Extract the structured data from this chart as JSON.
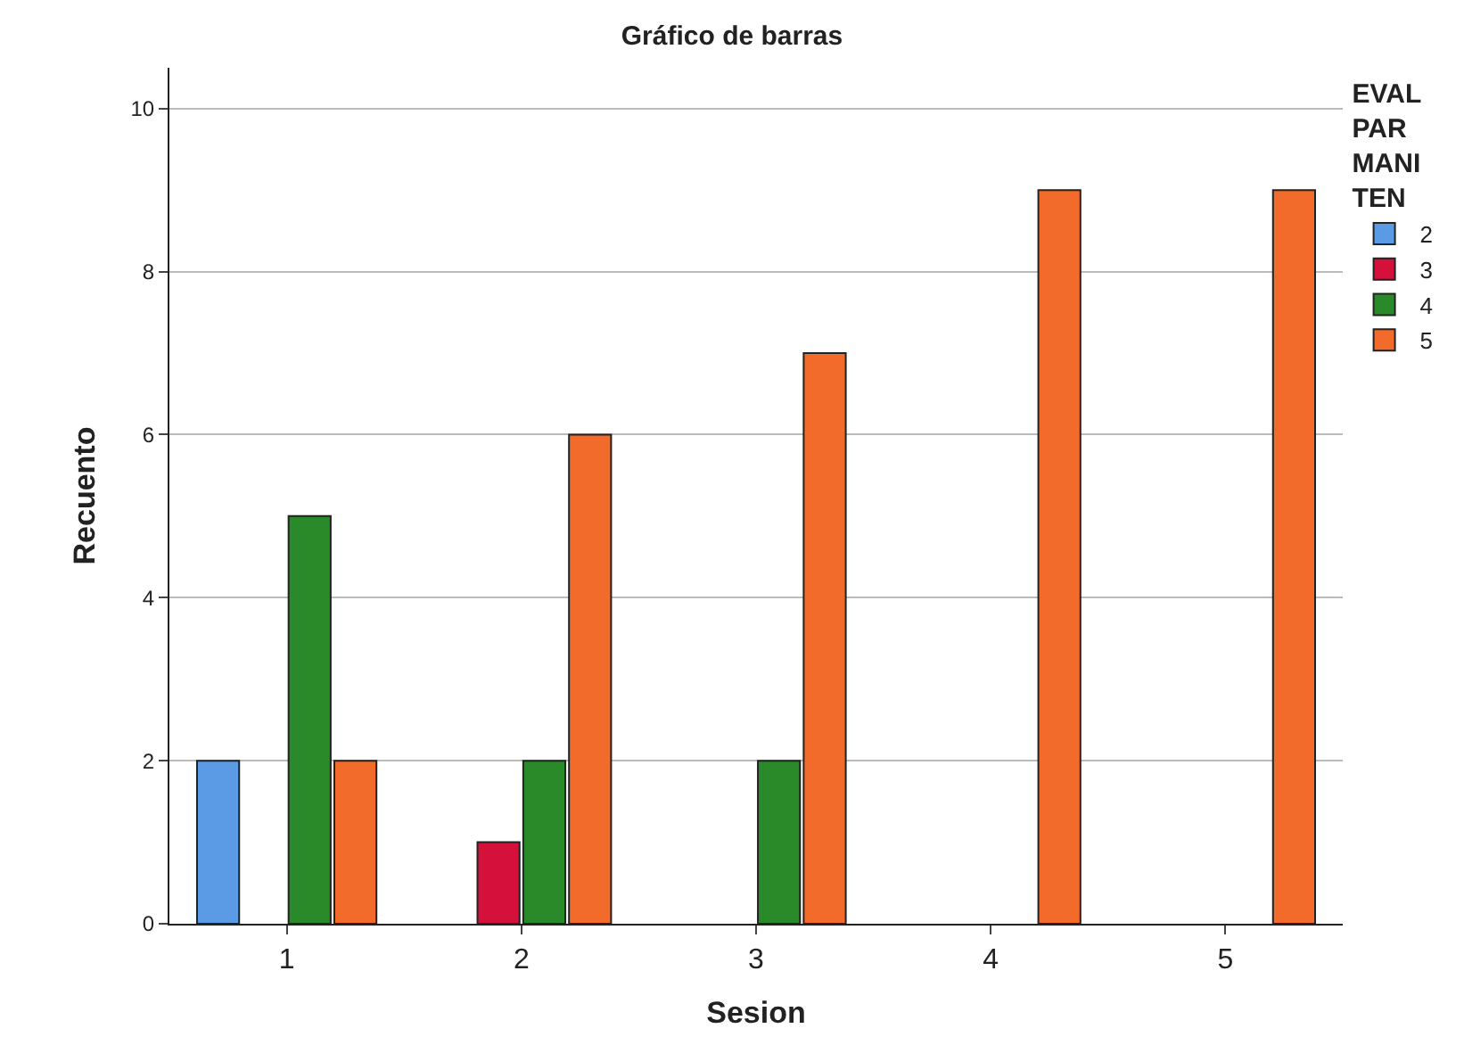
{
  "chart_data": {
    "type": "bar",
    "title": "Gráfico de barras",
    "xlabel": "Sesion",
    "ylabel": "Recuento",
    "legend_title": "EVAL PAR MANI TEN",
    "categories": [
      "1",
      "2",
      "3",
      "4",
      "5"
    ],
    "series": [
      {
        "name": "2",
        "color": "#5b9be6",
        "values": [
          2,
          null,
          null,
          null,
          null
        ]
      },
      {
        "name": "3",
        "color": "#d5103a",
        "values": [
          null,
          1,
          null,
          null,
          null
        ]
      },
      {
        "name": "4",
        "color": "#2a8a2a",
        "values": [
          5,
          2,
          2,
          null,
          null
        ]
      },
      {
        "name": "5",
        "color": "#f26b2a",
        "values": [
          2,
          6,
          7,
          9,
          9
        ]
      }
    ],
    "ylim": [
      0,
      10.5
    ],
    "yticks": [
      0,
      2,
      4,
      6,
      8,
      10
    ],
    "grid": "y",
    "legend": "top right"
  }
}
